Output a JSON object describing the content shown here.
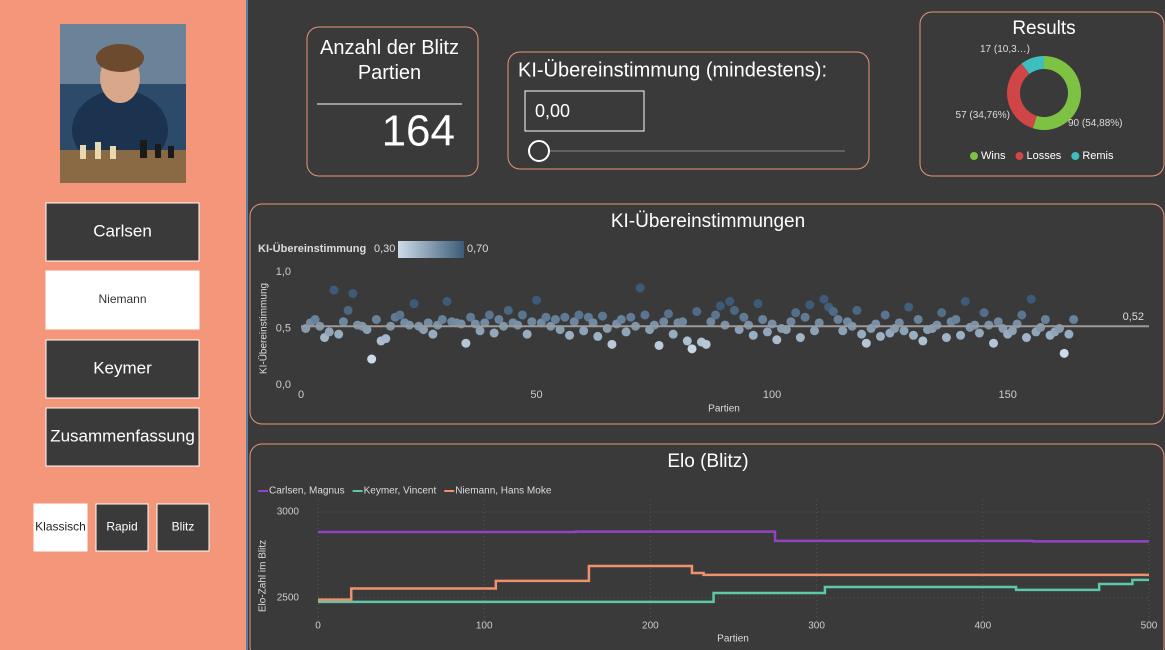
{
  "sidebar": {
    "buttons": [
      "Carlsen",
      "Niemann",
      "Keymer",
      "Zusammenfassung"
    ],
    "selected": 1,
    "modes": [
      "Klassisch",
      "Rapid",
      "Blitz"
    ],
    "mode_selected": 0
  },
  "card": {
    "title": "Anzahl der Blitz Partien",
    "value": 164
  },
  "slicer": {
    "title": "KI-Übereinstimmung (mindestens):",
    "input": "0,00"
  },
  "chart_data": [
    {
      "type": "donut",
      "title": "Results",
      "categories": [
        "Wins",
        "Losses",
        "Remis"
      ],
      "values": [
        90,
        57,
        17
      ],
      "value_labels": [
        "90 (54,88%)",
        "57 (34,76%)",
        "17 (10,3…)"
      ],
      "colors": [
        "#7dc243",
        "#d04545",
        "#3dbfbf"
      ]
    },
    {
      "type": "scatter",
      "title": "KI-Übereinstimmungen",
      "xlabel": "Partien",
      "ylabel": "KI-Übereinstimmung",
      "legend_title": "KI-Übereinstimmung",
      "color_scale": {
        "min": {
          "value": 0.3,
          "label": "0,30"
        },
        "max": {
          "value": 0.7,
          "label": "0,70"
        },
        "colors": [
          "#cddcea",
          "#3d5b78"
        ]
      },
      "x": [
        1,
        2,
        3,
        4,
        5,
        6,
        7,
        8,
        9,
        10,
        11,
        12,
        13,
        14,
        15,
        16,
        17,
        18,
        19,
        20,
        21,
        22,
        23,
        24,
        25,
        26,
        27,
        28,
        29,
        30,
        31,
        32,
        33,
        34,
        35,
        36,
        37,
        38,
        39,
        40,
        41,
        42,
        43,
        44,
        45,
        46,
        47,
        48,
        49,
        50,
        51,
        52,
        53,
        54,
        55,
        56,
        57,
        58,
        59,
        60,
        61,
        62,
        63,
        64,
        65,
        66,
        67,
        68,
        69,
        70,
        71,
        72,
        73,
        74,
        75,
        76,
        77,
        78,
        79,
        80,
        81,
        82,
        83,
        84,
        85,
        86,
        87,
        88,
        89,
        90,
        91,
        92,
        93,
        94,
        95,
        96,
        97,
        98,
        99,
        100,
        101,
        102,
        103,
        104,
        105,
        106,
        107,
        108,
        109,
        110,
        111,
        112,
        113,
        114,
        115,
        116,
        117,
        118,
        119,
        120,
        121,
        122,
        123,
        124,
        125,
        126,
        127,
        128,
        129,
        130,
        131,
        132,
        133,
        134,
        135,
        136,
        137,
        138,
        139,
        140,
        141,
        142,
        143,
        144,
        145,
        146,
        147,
        148,
        149,
        150,
        151,
        152,
        153,
        154,
        155,
        156,
        157,
        158,
        159,
        160,
        161,
        162,
        163,
        164
      ],
      "values": [
        0.5,
        0.55,
        0.58,
        0.52,
        0.42,
        0.47,
        0.84,
        0.45,
        0.56,
        0.66,
        0.81,
        0.53,
        0.52,
        0.49,
        0.23,
        0.58,
        0.39,
        0.41,
        0.52,
        0.6,
        0.62,
        0.55,
        0.53,
        0.72,
        0.52,
        0.49,
        0.55,
        0.45,
        0.53,
        0.58,
        0.74,
        0.56,
        0.55,
        0.54,
        0.37,
        0.6,
        0.54,
        0.48,
        0.55,
        0.62,
        0.46,
        0.58,
        0.52,
        0.66,
        0.55,
        0.53,
        0.62,
        0.45,
        0.56,
        0.75,
        0.55,
        0.6,
        0.52,
        0.58,
        0.49,
        0.6,
        0.44,
        0.56,
        0.62,
        0.48,
        0.6,
        0.55,
        0.43,
        0.61,
        0.5,
        0.36,
        0.54,
        0.58,
        0.47,
        0.6,
        0.52,
        0.86,
        0.62,
        0.49,
        0.53,
        0.35,
        0.56,
        0.63,
        0.45,
        0.55,
        0.56,
        0.39,
        0.32,
        0.65,
        0.38,
        0.36,
        0.56,
        0.62,
        0.7,
        0.53,
        0.74,
        0.66,
        0.49,
        0.6,
        0.53,
        0.44,
        0.72,
        0.58,
        0.47,
        0.54,
        0.4,
        0.5,
        0.49,
        0.56,
        0.64,
        0.42,
        0.6,
        0.71,
        0.48,
        0.55,
        0.76,
        0.69,
        0.65,
        0.58,
        0.48,
        0.56,
        0.52,
        0.66,
        0.45,
        0.37,
        0.5,
        0.54,
        0.43,
        0.62,
        0.46,
        0.5,
        0.55,
        0.48,
        0.69,
        0.44,
        0.58,
        0.39,
        0.49,
        0.5,
        0.53,
        0.64,
        0.42,
        0.56,
        0.58,
        0.44,
        0.74,
        0.51,
        0.53,
        0.46,
        0.64,
        0.53,
        0.37,
        0.56,
        0.5,
        0.45,
        0.48,
        0.54,
        0.62,
        0.42,
        0.76,
        0.47,
        0.51,
        0.58,
        0.44,
        0.47,
        0.5,
        0.28,
        0.45,
        0.58
      ],
      "xlim": [
        0,
        180
      ],
      "ylim": [
        0,
        1
      ],
      "xticks": [
        0,
        50,
        100,
        150
      ],
      "yticks": [
        {
          "value": 0,
          "label": "0,0"
        },
        {
          "value": 0.5,
          "label": "0,5"
        },
        {
          "value": 1,
          "label": "1,0"
        }
      ],
      "reference_line": {
        "value": 0.52,
        "label": "0,52",
        "color": "#9a9a9a"
      }
    },
    {
      "type": "line",
      "step": true,
      "title": "Elo (Blitz)",
      "xlabel": "Partien",
      "ylabel": "Elo-Zahl im Blitz",
      "legend": "top-left",
      "grid": true,
      "xlim": [
        0,
        500
      ],
      "ylim": [
        2360,
        3070
      ],
      "xticks": [
        0,
        100,
        200,
        300,
        400,
        500
      ],
      "yticks": [
        2500,
        3000
      ],
      "series": [
        {
          "name": "Carlsen, Magnus",
          "color": "#8e44c4",
          "x": [
            0,
            155,
            275,
            430,
            500
          ],
          "values": [
            2884,
            2886,
            2832,
            2829,
            2829
          ]
        },
        {
          "name": "Keymer, Vincent",
          "color": "#5cc8a8",
          "x": [
            0,
            238,
            305,
            420,
            470,
            490,
            500
          ],
          "values": [
            2477,
            2529,
            2564,
            2547,
            2581,
            2605,
            2605
          ]
        },
        {
          "name": "Niemann, Hans Moke",
          "color": "#f0906c",
          "x": [
            0,
            20,
            107,
            163,
            225,
            232,
            500
          ],
          "values": [
            2490,
            2555,
            2599,
            2686,
            2645,
            2634,
            2634
          ]
        }
      ]
    }
  ]
}
